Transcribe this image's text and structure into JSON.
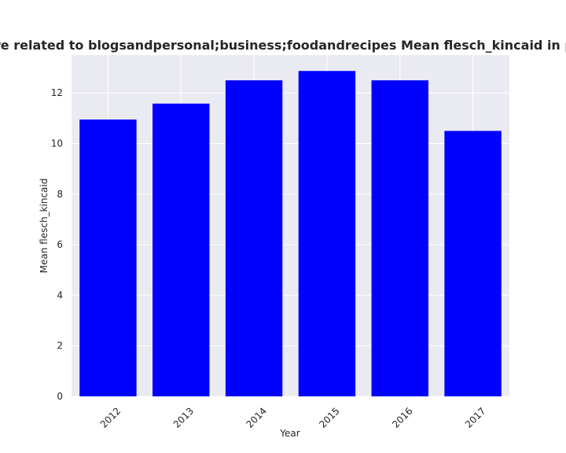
{
  "chart_data": {
    "type": "bar",
    "title": "Categories are related to blogsandpersonal;business;foodandrecipes Mean flesch_kincaid in privacy policies",
    "xlabel": "Year",
    "ylabel": "Mean flesch_kincaid",
    "categories": [
      "2012",
      "2013",
      "2014",
      "2015",
      "2016",
      "2017"
    ],
    "values": [
      10.95,
      11.58,
      12.5,
      12.87,
      12.5,
      10.5
    ],
    "ylim": [
      0,
      13.5
    ],
    "yticks": [
      "0",
      "2",
      "4",
      "6",
      "8",
      "10",
      "12"
    ],
    "bar_color": "#0000ff",
    "plot_background": "#eaeaf2",
    "grid": true
  }
}
